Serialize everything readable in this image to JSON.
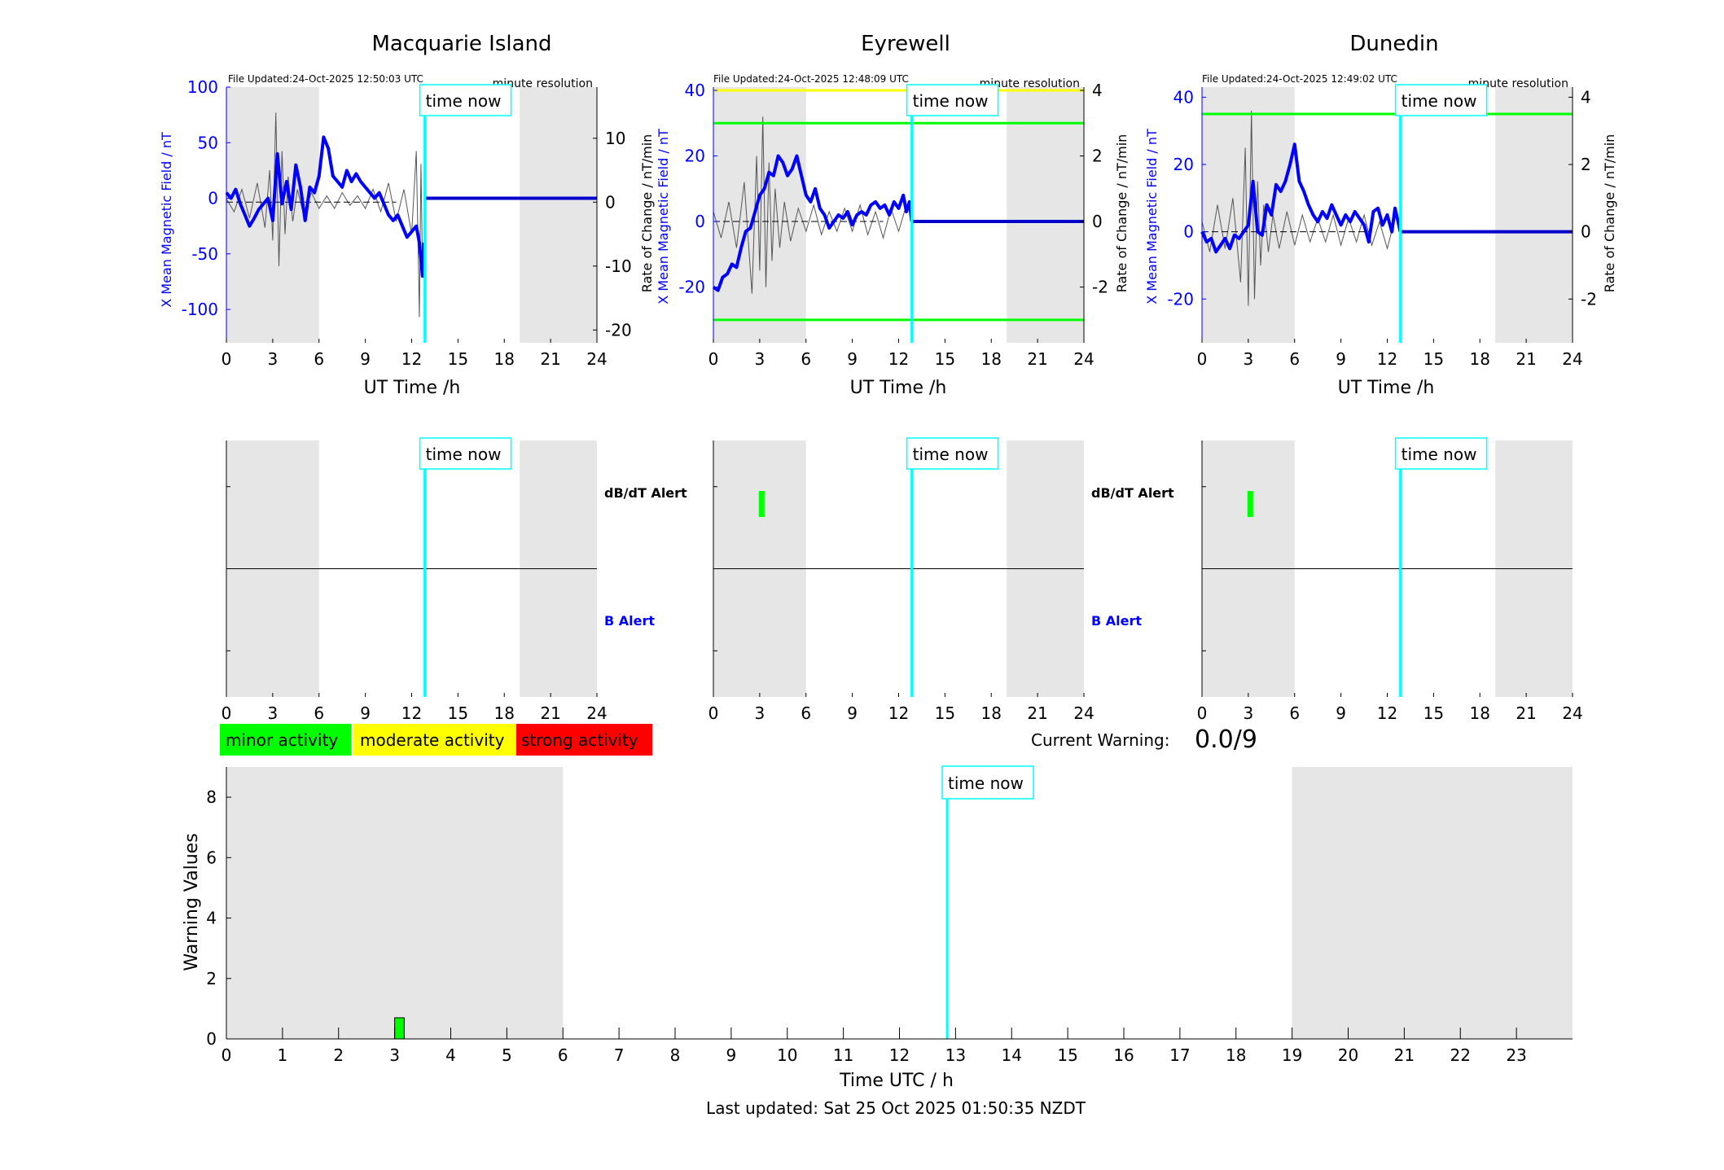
{
  "colors": {
    "shade": "#e6e6e6",
    "x_line": "#0000ff",
    "now_line": "#00ffff",
    "green_band": "#00ff00",
    "yellow_band": "#ffff00",
    "rate_trace": "#000000",
    "b_alert": "#0000ff"
  },
  "labels": {
    "time_now": "time now",
    "minute_resolution": "minute resolution",
    "ut_time": "UT Time /h",
    "x_axis_label": "X Mean Magnetic Field / nT",
    "rate_axis_label": "Rate of Change / nT/min",
    "dbdt_alert": "dB/dT Alert",
    "b_alert": "B Alert",
    "current_warning_label": "Current Warning:",
    "current_warning_value": "0.0/9",
    "warning_values": "Warning Values",
    "time_utc": "Time UTC / h",
    "last_updated": "Last updated: Sat 25 Oct 2025 01:50:35 NZDT"
  },
  "legend": [
    {
      "label": "minor activity",
      "color": "#00ff00"
    },
    {
      "label": "moderate activity",
      "color": "#ffff00"
    },
    {
      "label": "strong activity",
      "color": "#ff0000"
    }
  ],
  "chart_data": [
    {
      "type": "line",
      "title": "Macquarie Island",
      "file_updated": "File Updated:24-Oct-2025 12:50:03 UTC",
      "resolution": "minute resolution",
      "xlabel": "UT Time /h",
      "ylabel": "X Mean Magnetic Field / nT",
      "y2label": "Rate of Change / nT/min",
      "xlim": [
        0,
        24
      ],
      "xticks": [
        0,
        3,
        6,
        9,
        12,
        15,
        18,
        21,
        24
      ],
      "ylim": [
        -130,
        100
      ],
      "yticks": [
        -100,
        -50,
        0,
        50,
        100
      ],
      "y2lim": [
        -22,
        18
      ],
      "y2ticks": [
        -20,
        -10,
        0,
        10
      ],
      "shaded_hours": [
        [
          0,
          6
        ],
        [
          19,
          24
        ]
      ],
      "now_hour": 12.85,
      "threshold_lines": [],
      "series": [
        {
          "name": "X",
          "role": "x",
          "x": [
            0,
            0.3,
            0.6,
            0.9,
            1.2,
            1.5,
            1.8,
            2.1,
            2.4,
            2.7,
            3.0,
            3.3,
            3.6,
            3.9,
            4.2,
            4.5,
            4.8,
            5.1,
            5.4,
            5.7,
            6.0,
            6.3,
            6.6,
            6.9,
            7.2,
            7.5,
            7.8,
            8.1,
            8.4,
            8.7,
            9.0,
            9.3,
            9.6,
            9.9,
            10.2,
            10.5,
            10.8,
            11.1,
            11.4,
            11.7,
            12.0,
            12.3,
            12.5,
            12.6,
            12.7,
            12.8
          ],
          "y": [
            5,
            0,
            8,
            -5,
            -15,
            -25,
            -18,
            -10,
            -5,
            0,
            -20,
            40,
            -5,
            15,
            -10,
            30,
            10,
            -20,
            10,
            5,
            20,
            55,
            45,
            20,
            15,
            10,
            25,
            15,
            22,
            15,
            10,
            5,
            0,
            5,
            -5,
            -15,
            -20,
            -15,
            -25,
            -35,
            -30,
            -25,
            -40,
            -55,
            -70,
            -40
          ]
        },
        {
          "name": "dB/dt",
          "role": "rate",
          "x": [
            0,
            0.5,
            1.0,
            1.5,
            2.0,
            2.5,
            2.8,
            3.0,
            3.2,
            3.4,
            3.6,
            3.8,
            4.0,
            4.3,
            4.6,
            5.0,
            5.5,
            6.0,
            6.5,
            7.0,
            7.5,
            8.0,
            8.5,
            9.0,
            9.5,
            10.0,
            10.5,
            11.0,
            11.5,
            12.0,
            12.3,
            12.5,
            12.6,
            12.7
          ],
          "y": [
            0.5,
            -1.5,
            2,
            -2.5,
            3,
            -4,
            5,
            -6,
            14,
            -10,
            8,
            -5,
            4,
            -3,
            2,
            -2,
            1.5,
            -1,
            1,
            -1,
            1.5,
            -0.5,
            1,
            -1,
            2,
            -1.5,
            3,
            -3,
            2,
            -5,
            8,
            -18,
            6,
            -10
          ]
        }
      ],
      "dbdt_alert_bars": [],
      "b_alert_bars": []
    },
    {
      "type": "line",
      "title": "Eyrewell",
      "file_updated": "File Updated:24-Oct-2025 12:48:09 UTC",
      "resolution": "minute resolution",
      "xlabel": "UT Time /h",
      "ylabel": "X Mean Magnetic Field / nT",
      "y2label": "Rate of Change / nT/min",
      "xlim": [
        0,
        24
      ],
      "xticks": [
        0,
        3,
        6,
        9,
        12,
        15,
        18,
        21,
        24
      ],
      "ylim": [
        -37,
        41
      ],
      "yticks": [
        -20,
        0,
        20,
        40
      ],
      "y2lim": [
        -3.7,
        4.1
      ],
      "y2ticks": [
        -2,
        0,
        2,
        4
      ],
      "shaded_hours": [
        [
          0,
          6
        ],
        [
          19,
          24
        ]
      ],
      "now_hour": 12.85,
      "threshold_lines": [
        {
          "value": 40,
          "color": "#ffff00"
        },
        {
          "value": 30,
          "color": "#00ff00"
        },
        {
          "value": -30,
          "color": "#00ff00"
        }
      ],
      "series": [
        {
          "name": "X",
          "role": "x",
          "x": [
            0,
            0.3,
            0.6,
            0.9,
            1.2,
            1.5,
            1.8,
            2.1,
            2.4,
            2.7,
            3.0,
            3.3,
            3.6,
            3.9,
            4.2,
            4.5,
            4.8,
            5.1,
            5.4,
            5.7,
            6.0,
            6.3,
            6.6,
            6.9,
            7.2,
            7.5,
            7.8,
            8.1,
            8.4,
            8.7,
            9.0,
            9.3,
            9.6,
            9.9,
            10.2,
            10.5,
            10.8,
            11.1,
            11.4,
            11.7,
            12.0,
            12.3,
            12.5,
            12.7,
            12.85
          ],
          "y": [
            -20,
            -21,
            -17,
            -16,
            -13,
            -14,
            -8,
            -3,
            -2,
            3,
            8,
            10,
            15,
            14,
            20,
            18,
            14,
            16,
            20,
            14,
            8,
            6,
            10,
            4,
            2,
            -2,
            0,
            2,
            1,
            3,
            -1,
            2,
            3,
            2,
            5,
            6,
            4,
            5,
            2,
            6,
            4,
            8,
            3,
            6,
            0
          ]
        },
        {
          "name": "dB/dt",
          "role": "rate",
          "x": [
            0,
            0.5,
            1.0,
            1.5,
            2.0,
            2.5,
            2.8,
            3.0,
            3.2,
            3.4,
            3.6,
            3.8,
            4.0,
            4.3,
            4.6,
            5.0,
            5.5,
            6.0,
            6.5,
            7.0,
            7.5,
            8.0,
            8.5,
            9.0,
            9.5,
            10.0,
            10.5,
            11.0,
            11.5,
            12.0,
            12.5
          ],
          "y": [
            0.3,
            -0.5,
            0.6,
            -0.8,
            1.2,
            -2.2,
            2.0,
            -1.5,
            3.2,
            -2.0,
            1.8,
            -1.2,
            1.0,
            -0.8,
            0.6,
            -0.6,
            0.4,
            -0.3,
            0.5,
            -0.4,
            0.3,
            -0.3,
            0.4,
            -0.3,
            0.5,
            -0.4,
            0.3,
            -0.5,
            0.4,
            -0.3,
            0.5
          ]
        }
      ],
      "dbdt_alert_bars": [
        {
          "hour": 3.1,
          "level": 0.5
        }
      ],
      "b_alert_bars": []
    },
    {
      "type": "line",
      "title": "Dunedin",
      "file_updated": "File Updated:24-Oct-2025 12:49:02 UTC",
      "resolution": "minute resolution",
      "xlabel": "UT Time /h",
      "ylabel": "X Mean Magnetic Field / nT",
      "y2label": "Rate of Change / nT/min",
      "xlim": [
        0,
        24
      ],
      "xticks": [
        0,
        3,
        6,
        9,
        12,
        15,
        18,
        21,
        24
      ],
      "ylim": [
        -33,
        43
      ],
      "yticks": [
        -20,
        0,
        20,
        40
      ],
      "y2lim": [
        -3.3,
        4.3
      ],
      "y2ticks": [
        -2,
        0,
        2,
        4
      ],
      "shaded_hours": [
        [
          0,
          6
        ],
        [
          19,
          24
        ]
      ],
      "now_hour": 12.85,
      "threshold_lines": [
        {
          "value": 35,
          "color": "#00ff00"
        }
      ],
      "series": [
        {
          "name": "X",
          "role": "x",
          "x": [
            0,
            0.3,
            0.6,
            0.9,
            1.2,
            1.5,
            1.8,
            2.1,
            2.4,
            2.7,
            3.0,
            3.3,
            3.6,
            3.9,
            4.2,
            4.5,
            4.8,
            5.1,
            5.4,
            5.7,
            6.0,
            6.3,
            6.6,
            6.9,
            7.2,
            7.5,
            7.8,
            8.1,
            8.4,
            8.7,
            9.0,
            9.3,
            9.6,
            9.9,
            10.2,
            10.5,
            10.8,
            11.1,
            11.4,
            11.7,
            12.0,
            12.3,
            12.5,
            12.7,
            12.85
          ],
          "y": [
            0,
            -3,
            -2,
            -6,
            -4,
            -2,
            -5,
            -1,
            -2,
            0,
            2,
            15,
            0,
            -1,
            8,
            5,
            14,
            12,
            15,
            20,
            26,
            15,
            12,
            8,
            5,
            3,
            6,
            4,
            8,
            5,
            2,
            5,
            3,
            6,
            4,
            2,
            -3,
            6,
            7,
            2,
            5,
            0,
            7,
            3,
            0
          ]
        },
        {
          "name": "dB/dt",
          "role": "rate",
          "x": [
            0,
            0.5,
            1.0,
            1.5,
            2.0,
            2.5,
            2.8,
            3.0,
            3.2,
            3.4,
            3.6,
            3.8,
            4.0,
            4.3,
            4.6,
            5.0,
            5.5,
            6.0,
            6.5,
            7.0,
            7.5,
            8.0,
            8.5,
            9.0,
            9.5,
            10.0,
            10.5,
            11.0,
            11.5,
            12.0,
            12.5
          ],
          "y": [
            0.3,
            -0.6,
            0.8,
            -0.5,
            1.0,
            -1.5,
            2.5,
            -2.2,
            3.6,
            -2.0,
            1.5,
            -1.0,
            0.8,
            -0.6,
            0.5,
            -0.5,
            0.6,
            -0.4,
            0.5,
            -0.3,
            0.4,
            -0.3,
            0.5,
            -0.4,
            0.4,
            -0.3,
            0.5,
            -0.4,
            0.3,
            -0.5,
            0.4
          ]
        }
      ],
      "dbdt_alert_bars": [
        {
          "hour": 3.1,
          "level": 0.5
        }
      ],
      "b_alert_bars": []
    },
    {
      "type": "bar",
      "title": "",
      "xlabel": "Time UTC / h",
      "ylabel": "Warning Values",
      "xlim": [
        0,
        24
      ],
      "xticks": [
        0,
        1,
        2,
        3,
        4,
        5,
        6,
        7,
        8,
        9,
        10,
        11,
        12,
        13,
        14,
        15,
        16,
        17,
        18,
        19,
        20,
        21,
        22,
        23
      ],
      "ylim": [
        0,
        9
      ],
      "yticks": [
        0,
        2,
        4,
        6,
        8
      ],
      "shaded_hours": [
        [
          0,
          6
        ],
        [
          19,
          24
        ]
      ],
      "now_hour": 12.85,
      "bars": [
        {
          "hour": 3.0,
          "width": 0.17,
          "value": 0.7,
          "color": "#00ff00"
        }
      ]
    }
  ]
}
